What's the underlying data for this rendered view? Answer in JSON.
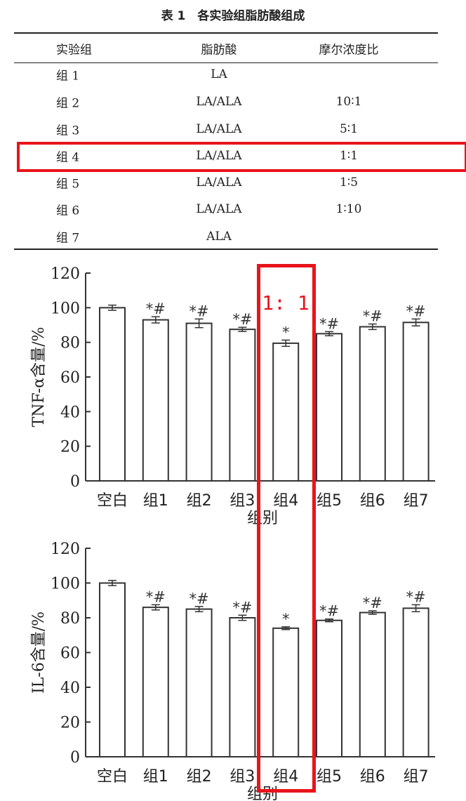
{
  "table": {
    "title": "表 1　各实验组脂肪酸组成",
    "headers": [
      "实验组",
      "脂肪酸",
      "摩尔浓度比"
    ],
    "rows": [
      [
        "组 1",
        "LA",
        ""
      ],
      [
        "组 2",
        "LA/ALA",
        "10∶1"
      ],
      [
        "组 3",
        "LA/ALA",
        "5∶1"
      ],
      [
        "组 4",
        "LA/ALA",
        "1∶1"
      ],
      [
        "组 5",
        "LA/ALA",
        "1∶5"
      ],
      [
        "组 6",
        "LA/ALA",
        "1∶10"
      ],
      [
        "组 7",
        "ALA",
        ""
      ]
    ],
    "highlight_row": 3
  },
  "annotation": {
    "ratio_label": "1: 1",
    "highlight_color": "#e8141b",
    "highlight_category": "组4"
  },
  "chart_data": [
    {
      "type": "bar",
      "ylabel": "TNF-α含量/%",
      "xlabel": "组别",
      "ylim": [
        0,
        120
      ],
      "yticks": [
        0,
        20,
        40,
        60,
        80,
        100,
        120
      ],
      "categories": [
        "空白",
        "组1",
        "组2",
        "组3",
        "组4",
        "组5",
        "组6",
        "组7"
      ],
      "values": [
        100,
        93,
        91,
        87.5,
        79.5,
        85,
        89,
        91.5
      ],
      "errors": [
        1.5,
        1.8,
        2.5,
        1.2,
        1.8,
        1.2,
        1.6,
        2
      ],
      "markers": [
        "",
        "*#",
        "*#",
        "*#",
        "*",
        "*#",
        "*#",
        "*#"
      ]
    },
    {
      "type": "bar",
      "ylabel": "IL-6含量/%",
      "xlabel": "组别",
      "ylim": [
        0,
        120
      ],
      "yticks": [
        0,
        20,
        40,
        60,
        80,
        100,
        120
      ],
      "categories": [
        "空白",
        "组1",
        "组2",
        "组3",
        "组4",
        "组5",
        "组6",
        "组7"
      ],
      "values": [
        100,
        86,
        85,
        80,
        74,
        78.5,
        83,
        85.5
      ],
      "errors": [
        1.5,
        1.5,
        1.5,
        1.5,
        0.8,
        0.8,
        1,
        2
      ],
      "markers": [
        "",
        "*#",
        "*#",
        "*#",
        "*",
        "*#",
        "*#",
        "*#"
      ]
    }
  ]
}
